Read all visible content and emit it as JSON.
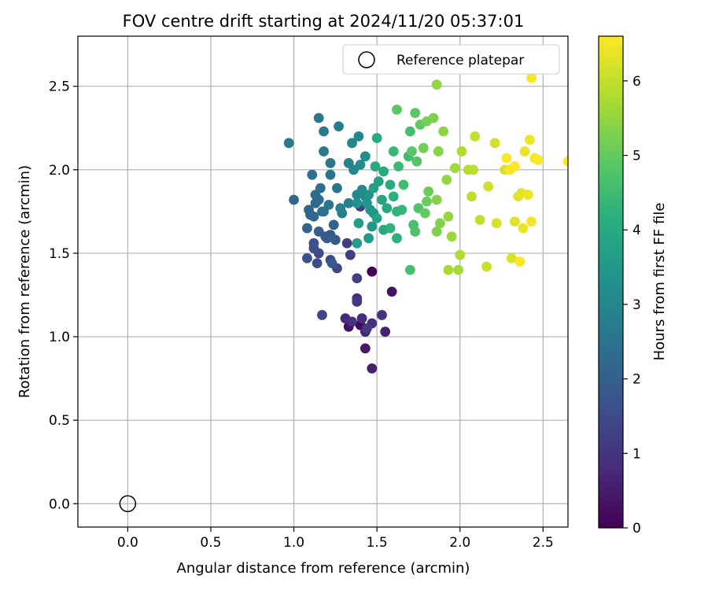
{
  "chart_data": {
    "type": "scatter",
    "title": "FOV centre drift starting at 2024/11/20 05:37:01",
    "xlabel": "Angular distance from reference (arcmin)",
    "ylabel": "Rotation from reference (arcmin)",
    "xlim": [
      -0.3,
      2.65
    ],
    "ylim": [
      -0.14,
      2.8
    ],
    "xticks": [
      0.0,
      0.5,
      1.0,
      1.5,
      2.0,
      2.5
    ],
    "yticks": [
      0.0,
      0.5,
      1.0,
      1.5,
      2.0,
      2.5
    ],
    "xtick_labels": [
      "0.0",
      "0.5",
      "1.0",
      "1.5",
      "2.0",
      "2.5"
    ],
    "ytick_labels": [
      "0.0",
      "0.5",
      "1.0",
      "1.5",
      "2.0",
      "2.5"
    ],
    "grid": true,
    "legend": {
      "position": "upper right",
      "entries": [
        "Reference platepar"
      ]
    },
    "reference_point": {
      "x": 0.0,
      "y": 0.0
    },
    "colorbar": {
      "label": "Hours from first FF file",
      "range": [
        0,
        6.6
      ],
      "ticks": [
        0,
        1,
        2,
        3,
        4,
        5,
        6
      ],
      "tick_labels": [
        "0",
        "1",
        "2",
        "3",
        "4",
        "5",
        "6"
      ],
      "colormap": "viridis"
    },
    "series": [
      {
        "columns": [
          "x",
          "y",
          "hours"
        ],
        "points": [
          [
            1.47,
            1.39,
            0.0
          ],
          [
            1.4,
            1.07,
            0.15
          ],
          [
            1.33,
            1.06,
            0.25
          ],
          [
            1.59,
            1.27,
            0.35
          ],
          [
            1.43,
            0.93,
            0.45
          ],
          [
            1.47,
            0.81,
            0.55
          ],
          [
            1.55,
            1.03,
            0.6
          ],
          [
            1.43,
            1.03,
            0.7
          ],
          [
            1.31,
            1.11,
            0.75
          ],
          [
            1.38,
            1.23,
            0.8
          ],
          [
            1.41,
            1.11,
            0.85
          ],
          [
            1.47,
            1.08,
            0.9
          ],
          [
            1.53,
            1.13,
            0.95
          ],
          [
            1.35,
            1.09,
            1.0
          ],
          [
            1.38,
            1.21,
            1.05
          ],
          [
            1.44,
            1.05,
            1.1
          ],
          [
            1.34,
            1.49,
            1.15
          ],
          [
            1.32,
            1.56,
            1.2
          ],
          [
            1.38,
            1.35,
            1.25
          ],
          [
            1.4,
            1.78,
            1.3
          ],
          [
            1.26,
            1.41,
            1.35
          ],
          [
            1.17,
            1.13,
            1.4
          ],
          [
            1.22,
            1.46,
            1.45
          ],
          [
            1.15,
            1.5,
            1.5
          ],
          [
            1.14,
            1.44,
            1.55
          ],
          [
            1.12,
            1.53,
            1.6
          ],
          [
            1.12,
            1.56,
            1.65
          ],
          [
            1.08,
            1.47,
            1.7
          ],
          [
            1.19,
            1.6,
            1.75
          ],
          [
            1.22,
            1.61,
            1.8
          ],
          [
            1.23,
            1.44,
            1.85
          ],
          [
            1.25,
            1.58,
            1.9
          ],
          [
            1.2,
            1.59,
            1.95
          ],
          [
            1.15,
            1.63,
            2.0
          ],
          [
            1.24,
            1.67,
            2.05
          ],
          [
            1.1,
            1.73,
            2.1
          ],
          [
            1.08,
            1.65,
            2.1
          ],
          [
            1.09,
            1.76,
            2.15
          ],
          [
            1.12,
            1.72,
            2.2
          ],
          [
            1.0,
            1.82,
            2.2
          ],
          [
            1.13,
            1.8,
            2.25
          ],
          [
            1.17,
            1.75,
            2.3
          ],
          [
            1.15,
            1.82,
            2.3
          ],
          [
            1.13,
            1.85,
            2.35
          ],
          [
            1.16,
            1.89,
            2.4
          ],
          [
            1.11,
            1.97,
            2.4
          ],
          [
            1.18,
            1.75,
            2.45
          ],
          [
            1.21,
            1.79,
            2.5
          ],
          [
            1.22,
            1.97,
            2.5
          ],
          [
            1.26,
            1.89,
            2.55
          ],
          [
            1.22,
            2.04,
            2.6
          ],
          [
            1.18,
            2.11,
            2.6
          ],
          [
            0.97,
            2.16,
            2.65
          ],
          [
            1.15,
            2.31,
            2.65
          ],
          [
            1.18,
            2.23,
            2.7
          ],
          [
            1.27,
            2.26,
            2.75
          ],
          [
            1.29,
            1.74,
            2.8
          ],
          [
            1.28,
            1.77,
            2.85
          ],
          [
            1.33,
            1.8,
            2.9
          ],
          [
            1.33,
            2.04,
            2.95
          ],
          [
            1.36,
            2.0,
            3.0
          ],
          [
            1.35,
            2.16,
            3.0
          ],
          [
            1.39,
            2.2,
            3.05
          ],
          [
            1.38,
            1.85,
            3.1
          ],
          [
            1.41,
            1.88,
            3.15
          ],
          [
            1.43,
            1.84,
            3.2
          ],
          [
            1.4,
            2.03,
            3.2
          ],
          [
            1.43,
            2.08,
            3.25
          ],
          [
            1.38,
            1.8,
            3.3
          ],
          [
            1.45,
            1.85,
            3.35
          ],
          [
            1.44,
            1.8,
            3.4
          ],
          [
            1.46,
            1.76,
            3.45
          ],
          [
            1.48,
            1.74,
            3.5
          ],
          [
            1.47,
            1.66,
            3.5
          ],
          [
            1.45,
            1.59,
            3.55
          ],
          [
            1.38,
            1.56,
            3.6
          ],
          [
            1.39,
            1.68,
            3.65
          ],
          [
            1.48,
            1.89,
            3.7
          ],
          [
            1.51,
            1.93,
            3.75
          ],
          [
            1.5,
            1.71,
            3.8
          ],
          [
            1.53,
            1.82,
            3.85
          ],
          [
            1.56,
            1.77,
            3.9
          ],
          [
            1.54,
            1.64,
            3.95
          ],
          [
            1.5,
            2.19,
            4.0
          ],
          [
            1.49,
            2.02,
            4.0
          ],
          [
            1.54,
            1.99,
            4.05
          ],
          [
            1.58,
            1.91,
            4.1
          ],
          [
            1.6,
            1.84,
            4.15
          ],
          [
            1.62,
            1.59,
            4.2
          ],
          [
            1.58,
            1.65,
            4.25
          ],
          [
            1.62,
            1.75,
            4.3
          ],
          [
            1.65,
            1.76,
            4.35
          ],
          [
            1.6,
            2.11,
            4.4
          ],
          [
            1.63,
            2.02,
            4.45
          ],
          [
            1.66,
            1.91,
            4.5
          ],
          [
            1.69,
            2.08,
            4.5
          ],
          [
            1.7,
            2.23,
            4.55
          ],
          [
            1.7,
            1.4,
            4.6
          ],
          [
            1.72,
            1.67,
            4.65
          ],
          [
            1.73,
            1.63,
            4.7
          ],
          [
            1.75,
            1.77,
            4.75
          ],
          [
            1.74,
            2.05,
            4.8
          ],
          [
            1.71,
            2.11,
            4.85
          ],
          [
            1.73,
            2.34,
            4.9
          ],
          [
            1.62,
            2.36,
            4.9
          ],
          [
            1.76,
            2.27,
            4.95
          ],
          [
            1.79,
            1.74,
            5.0
          ],
          [
            1.8,
            1.81,
            5.05
          ],
          [
            1.81,
            1.87,
            5.1
          ],
          [
            1.78,
            2.13,
            5.15
          ],
          [
            1.8,
            2.29,
            5.2
          ],
          [
            1.84,
            2.31,
            5.25
          ],
          [
            1.86,
            1.63,
            5.3
          ],
          [
            1.88,
            1.68,
            5.3
          ],
          [
            1.86,
            1.82,
            5.35
          ],
          [
            1.87,
            2.11,
            5.4
          ],
          [
            1.9,
            2.23,
            5.45
          ],
          [
            1.86,
            2.51,
            5.5
          ],
          [
            1.92,
            1.94,
            5.5
          ],
          [
            1.93,
            1.72,
            5.55
          ],
          [
            1.95,
            1.6,
            5.6
          ],
          [
            1.97,
            2.01,
            5.65
          ],
          [
            1.99,
            1.4,
            5.7
          ],
          [
            1.93,
            1.4,
            5.75
          ],
          [
            2.0,
            1.49,
            5.8
          ],
          [
            2.01,
            2.11,
            5.8
          ],
          [
            2.05,
            2.0,
            5.85
          ],
          [
            2.08,
            2.0,
            5.9
          ],
          [
            2.07,
            1.84,
            5.95
          ],
          [
            2.09,
            2.2,
            6.0
          ],
          [
            2.12,
            1.7,
            6.0
          ],
          [
            2.16,
            1.42,
            6.05
          ],
          [
            2.17,
            1.9,
            6.1
          ],
          [
            2.21,
            2.16,
            6.15
          ],
          [
            2.22,
            1.68,
            6.2
          ],
          [
            2.27,
            2.0,
            6.2
          ],
          [
            2.31,
            1.47,
            6.25
          ],
          [
            2.33,
            1.69,
            6.3
          ],
          [
            2.35,
            1.84,
            6.3
          ],
          [
            2.37,
            1.86,
            6.35
          ],
          [
            2.38,
            1.65,
            6.4
          ],
          [
            2.39,
            2.11,
            6.4
          ],
          [
            2.41,
            1.85,
            6.45
          ],
          [
            2.42,
            2.18,
            6.45
          ],
          [
            2.43,
            1.69,
            6.5
          ],
          [
            2.45,
            2.07,
            6.5
          ],
          [
            2.43,
            2.55,
            6.55
          ],
          [
            2.36,
            1.45,
            6.55
          ],
          [
            2.3,
            2.0,
            6.55
          ],
          [
            2.33,
            2.02,
            6.6
          ],
          [
            2.28,
            2.07,
            6.6
          ],
          [
            2.47,
            2.06,
            6.6
          ],
          [
            2.65,
            2.05,
            6.6
          ]
        ]
      }
    ]
  }
}
